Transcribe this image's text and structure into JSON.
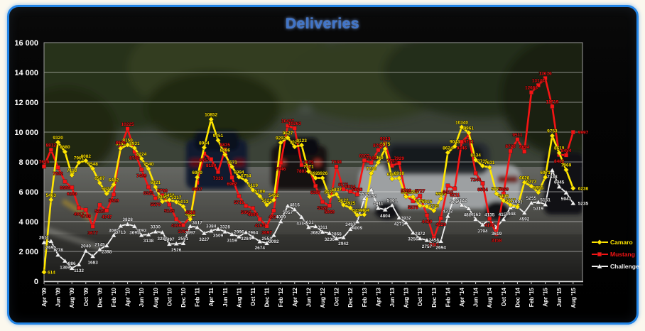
{
  "chart_data": {
    "type": "line",
    "title": "Deliveries",
    "ylim": [
      0,
      16000
    ],
    "y_tick_step": 2000,
    "y_tick_labels": [
      "0",
      "2 000",
      "4 000",
      "6 000",
      "8 000",
      "10 000",
      "12 000",
      "14 000",
      "16 000"
    ],
    "x_tick_labels": [
      "Apr '09",
      "Jun '09",
      "Aug '09",
      "Oct '09",
      "Dec '09",
      "Feb '10",
      "Apr '10",
      "Jun '10",
      "Aug '10",
      "Oct '10",
      "Dec '10",
      "Feb '11",
      "Apr '11",
      "Jun '11",
      "Aug '11",
      "Oct '11",
      "Dec '11",
      "Feb '12",
      "Apr '12",
      "Jun '12",
      "Aug '12",
      "Oct '12",
      "Dec '12",
      "Feb '13",
      "Apr '13",
      "Jun '13",
      "Aug '13",
      "Oct '13",
      "Dec '13",
      "Feb '14",
      "Apr '14",
      "Jun '14",
      "Aug '14",
      "Oct '14",
      "Dec '14",
      "Feb '15",
      "Apr '15",
      "Jun '15",
      "Aug '15"
    ],
    "grid": "horizontal",
    "legend_position": "right",
    "data_labels": true,
    "series": [
      {
        "name": "Camaro",
        "color": "#ffe600",
        "marker": "diamond",
        "values": [
          614,
          5463,
          9320,
          8680,
          7113,
          7961,
          8082,
          7548,
          6587,
          5871,
          6482,
          8904,
          9150,
          8931,
          8224,
          7540,
          6321,
          5345,
          5452,
          5317,
          5013,
          4162,
          6970,
          8964,
          10852,
          9451,
          8486,
          7671,
          6994,
          6754,
          6119,
          5709,
          5123,
          5452,
          9292,
          9627,
          9023,
          9123,
          7371,
          6923,
          6926,
          5670,
          5837,
          5122,
          4925,
          4439,
          4464,
          7236,
          7969,
          8875,
          6866,
          6918,
          5669,
          5659,
          5068,
          5015,
          4733,
          5539,
          8624,
          9043,
          10340,
          9961,
          8134,
          7735,
          7631,
          5877,
          5406,
          5117,
          4992,
          6628,
          6373,
          5955,
          6971,
          9753,
          8610,
          7469,
          6236
        ]
      },
      {
        "name": "Mustang",
        "color": "#f51414",
        "marker": "square",
        "values": [
          7699,
          8812,
          7632,
          6686,
          6289,
          4917,
          4789,
          3677,
          5115,
          4747,
          5829,
          8974,
          10225,
          8700,
          7489,
          6323,
          5570,
          5760,
          5145,
          4166,
          3763,
          4318,
          6607,
          8557,
          8180,
          7333,
          8835,
          6962,
          5711,
          5054,
          4898,
          4164,
          3697,
          4736,
          7946,
          10427,
          10263,
          7801,
          7675,
          6387,
          5328,
          5069,
          7688,
          6171,
          6024,
          5826,
          8102,
          7949,
          8797,
          9243,
          7751,
          7929,
          5768,
          5376,
          5727,
          4420,
          2881,
          4229,
          6410,
          6211,
          9346,
          9781,
          7248,
          6564,
          4190,
          3158,
          5869,
          8728,
          9511,
          8694,
          12663,
          13144,
          13616,
          11719,
          8482,
          8454,
          9997
        ]
      },
      {
        "name": "Challenger",
        "color": "#f0f0f0",
        "marker": "triangle",
        "values": [
          2611,
          2695,
          1778,
          1369,
          886,
          1132,
          2040,
          1683,
          2145,
          2398,
          3086,
          3713,
          3828,
          3695,
          3093,
          3138,
          3330,
          3283,
          2497,
          2526,
          2551,
          3697,
          3617,
          3227,
          3384,
          3509,
          3328,
          3159,
          2996,
          3284,
          2964,
          2674,
          2551,
          3092,
          4009,
          5057,
          4816,
          4304,
          3631,
          3682,
          3311,
          3230,
          2868,
          2942,
          3497,
          4009,
          5537,
          6132,
          4911,
          4804,
          5101,
          4271,
          3932,
          3256,
          2872,
          2757,
          2458,
          2694,
          4372,
          5748,
          5122,
          4882,
          4163,
          3794,
          4135,
          3619,
          4157,
          4948,
          4991,
          4592,
          5255,
          5319,
          5151,
          7438,
          6345,
          5943,
          5235
        ]
      }
    ]
  }
}
